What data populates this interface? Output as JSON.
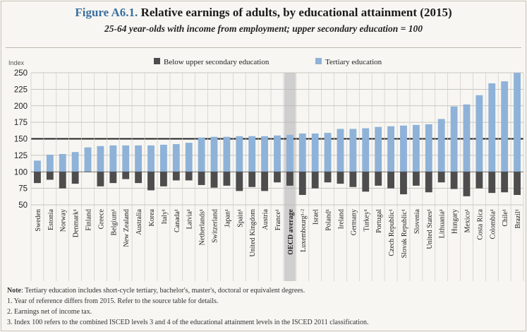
{
  "figure": {
    "number": "Figure A6.1.",
    "title": "Relative earnings of adults, by educational attainment (2015)",
    "subtitle": "25-64 year-olds with income from employment; upper secondary education = 100"
  },
  "chart_data": {
    "type": "bar",
    "ylabel": "Index",
    "ylim": [
      50,
      250
    ],
    "yticks": [
      50,
      75,
      100,
      125,
      150,
      175,
      200,
      225,
      250
    ],
    "baseline": 100,
    "grid": true,
    "legend_position": "top",
    "highlight": "OECD average",
    "categories": [
      "Sweden",
      "Estonia",
      "Norway",
      "Denmark¹",
      "Finland",
      "Greece",
      "Belgium¹",
      "New Zealand",
      "Australia",
      "Korea",
      "Italy¹",
      "Canada¹",
      "Latvia¹",
      "Netherlands¹",
      "Switzerland",
      "Japan¹",
      "Spain¹",
      "United Kingdom",
      "Austria",
      "France¹",
      "OECD average",
      "Luxembourg¹·²",
      "Israel",
      "Poland¹",
      "Ireland",
      "Germany",
      "Turkey¹",
      "Portugal",
      "Czech Republic¹",
      "Slovak Republic¹",
      "Slovenia",
      "United States¹",
      "Lithuania¹",
      "Hungary",
      "Mexico¹",
      "Costa Rica",
      "Colombia¹",
      "Chile¹",
      "Brazil¹"
    ],
    "series": [
      {
        "name": "Below upper secondary education",
        "color": "#4d4d4d",
        "values": [
          83,
          88,
          75,
          82,
          100,
          78,
          83,
          89,
          83,
          72,
          78,
          87,
          87,
          80,
          76,
          79,
          71,
          77,
          71,
          84,
          79,
          65,
          75,
          84,
          82,
          77,
          70,
          79,
          75,
          66,
          79,
          69,
          84,
          74,
          63,
          75,
          68,
          69,
          65
        ]
      },
      {
        "name": "Tertiary education",
        "color": "#8fb2d8",
        "values": [
          117,
          126,
          127,
          130,
          137,
          139,
          140,
          140,
          140,
          140,
          141,
          142,
          144,
          152,
          153,
          153,
          154,
          154,
          154,
          155,
          156,
          158,
          158,
          159,
          165,
          165,
          166,
          168,
          169,
          170,
          171,
          172,
          180,
          199,
          202,
          216,
          234,
          237,
          250
        ]
      }
    ]
  },
  "notes": {
    "note_label": "Note",
    "note_text": ": Tertiary education includes short-cycle tertiary, bachelor's, master's, doctoral or equivalent degrees.",
    "n1": "1. Year of reference differs from 2015. Refer to the source table for details.",
    "n2": "2. Earnings net of income tax.",
    "n3": "3. Index 100 refers to the combined ISCED levels 3 and 4 of the educational attainment levels in the ISCED 2011 classification."
  }
}
